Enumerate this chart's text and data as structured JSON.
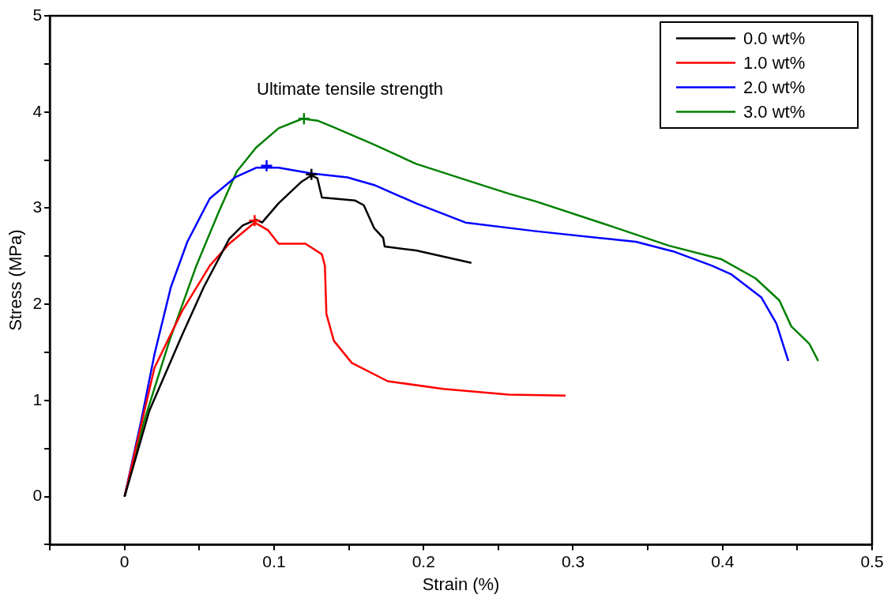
{
  "chart_data": {
    "type": "line",
    "xlabel": "Strain (%)",
    "ylabel": "Stress (MPa)",
    "annotations": [
      "Ultimate tensile strength"
    ],
    "xlim": [
      -0.05,
      0.5
    ],
    "ylim": [
      -0.5,
      5
    ],
    "xticks": [
      {
        "value": -0.05,
        "label": null
      },
      0.0,
      {
        "value": 0.05,
        "label": null
      },
      0.1,
      {
        "value": 0.15,
        "label": null
      },
      0.2,
      {
        "value": 0.25,
        "label": null
      },
      0.3,
      {
        "value": 0.35,
        "label": null
      },
      0.4,
      {
        "value": 0.45,
        "label": null
      },
      0.5
    ],
    "yticks": [
      {
        "value": -0.5,
        "label": null
      },
      0,
      {
        "value": 0.5,
        "label": null
      },
      1,
      {
        "value": 1.5,
        "label": null
      },
      2,
      {
        "value": 2.5,
        "label": null
      },
      3,
      {
        "value": 3.5,
        "label": null
      },
      4,
      {
        "value": 4.5,
        "label": null
      },
      5
    ],
    "grid": false,
    "legend": "top right",
    "marker": "none",
    "line_style": "solid",
    "series": [
      {
        "name": "0.0 wt%",
        "color": "#000000",
        "x": [
          0,
          0.0165,
          0.0385,
          0.053,
          0.07,
          0.079,
          0.088,
          0.092,
          0.103,
          0.118,
          0.125,
          0.129,
          0.132,
          0.154,
          0.16,
          0.167,
          0.173,
          0.174,
          0.195,
          0.232
        ],
        "values": [
          0,
          0.89,
          1.68,
          2.18,
          2.68,
          2.82,
          2.88,
          2.85,
          3.05,
          3.27,
          3.34,
          3.31,
          3.11,
          3.08,
          3.03,
          2.79,
          2.69,
          2.6,
          2.56,
          2.43
        ]
      },
      {
        "name": "1.0 wt%",
        "color": "#ff0000",
        "x": [
          0,
          0.02,
          0.0385,
          0.057,
          0.07,
          0.087,
          0.096,
          0.103,
          0.11,
          0.121,
          0.132,
          0.134,
          0.135,
          0.14,
          0.152,
          0.176,
          0.213,
          0.257,
          0.295
        ],
        "values": [
          0,
          1.34,
          1.93,
          2.4,
          2.63,
          2.85,
          2.77,
          2.63,
          2.63,
          2.63,
          2.52,
          2.4,
          1.9,
          1.62,
          1.39,
          1.2,
          1.12,
          1.06,
          1.05
        ]
      },
      {
        "name": "2.0 wt%",
        "color": "#0000ff",
        "x": [
          0,
          0.011,
          0.02,
          0.031,
          0.042,
          0.057,
          0.074,
          0.088,
          0.103,
          0.125,
          0.149,
          0.167,
          0.195,
          0.228,
          0.275,
          0.342,
          0.367,
          0.393,
          0.406,
          0.426,
          0.436,
          0.444
        ],
        "values": [
          0,
          0.78,
          1.48,
          2.18,
          2.65,
          3.1,
          3.32,
          3.42,
          3.42,
          3.36,
          3.32,
          3.24,
          3.05,
          2.85,
          2.76,
          2.65,
          2.55,
          2.4,
          2.31,
          2.07,
          1.8,
          1.41
        ]
      },
      {
        "name": "3.0 wt%",
        "color": "#008000",
        "x": [
          0,
          0.013,
          0.03,
          0.048,
          0.063,
          0.075,
          0.088,
          0.103,
          0.119,
          0.129,
          0.14,
          0.167,
          0.195,
          0.231,
          0.257,
          0.275,
          0.324,
          0.364,
          0.399,
          0.422,
          0.438,
          0.446,
          0.458,
          0.464
        ],
        "values": [
          0,
          0.78,
          1.62,
          2.4,
          2.96,
          3.38,
          3.63,
          3.83,
          3.93,
          3.91,
          3.84,
          3.66,
          3.46,
          3.28,
          3.15,
          3.07,
          2.82,
          2.61,
          2.47,
          2.27,
          2.04,
          1.77,
          1.59,
          1.41
        ]
      },
      {
        "type": "scatter",
        "marker": "cross",
        "colors": [
          "#000000",
          "#ff0000",
          "#0000ff",
          "#008000"
        ],
        "x": [
          0.125,
          0.087,
          0.095,
          0.12
        ],
        "values": [
          3.35,
          2.87,
          3.44,
          3.93
        ]
      }
    ]
  }
}
